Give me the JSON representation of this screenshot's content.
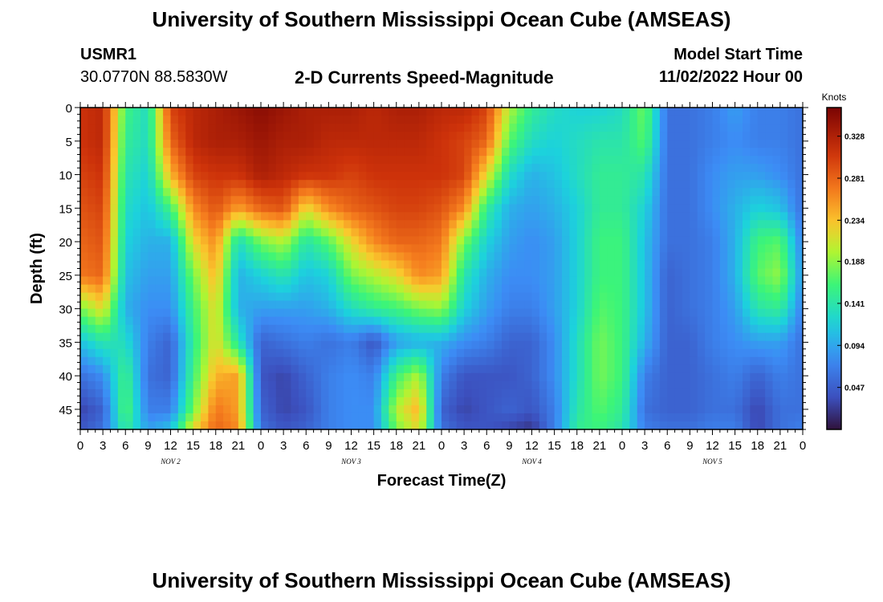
{
  "header": {
    "title": "University of Southern Mississippi Ocean Cube (AMSEAS)",
    "station": "USMR1",
    "coords": "30.0770N  88.5830W",
    "subtitle": "2-D Currents Speed-Magnitude",
    "model_start_label": "Model Start Time",
    "model_start_value": "11/02/2022 Hour 00"
  },
  "footer": {
    "title": "University of Southern Mississippi Ocean Cube (AMSEAS)"
  },
  "chart_data": {
    "type": "heatmap",
    "title": "2-D Currents Speed-Magnitude",
    "xlabel": "Forecast Time(Z)",
    "ylabel": "Depth (ft)",
    "x_unit": "hours since 11/02/2022 00Z",
    "xlim": [
      0,
      96
    ],
    "ylim": [
      0,
      48
    ],
    "x_ticks": [
      0,
      3,
      6,
      9,
      12,
      15,
      18,
      21,
      24,
      27,
      30,
      33,
      36,
      39,
      42,
      45,
      48,
      51,
      54,
      57,
      60,
      63,
      66,
      69,
      72,
      75,
      78,
      81,
      84,
      87,
      90,
      93,
      96
    ],
    "x_tick_labels": [
      "0",
      "3",
      "6",
      "9",
      "12",
      "15",
      "18",
      "21",
      "0",
      "3",
      "6",
      "9",
      "12",
      "15",
      "18",
      "21",
      "0",
      "3",
      "6",
      "9",
      "12",
      "15",
      "18",
      "21",
      "0",
      "3",
      "6",
      "9",
      "12",
      "15",
      "18",
      "21",
      "0"
    ],
    "day_labels": [
      {
        "label": "NOV 2",
        "hour": 12
      },
      {
        "label": "NOV 3",
        "hour": 36
      },
      {
        "label": "NOV 4",
        "hour": 60
      },
      {
        "label": "NOV 5",
        "hour": 84
      }
    ],
    "y_ticks": [
      0,
      5,
      10,
      15,
      20,
      25,
      30,
      35,
      40,
      45
    ],
    "y_tick_labels": [
      "0",
      "5",
      "10",
      "15",
      "20",
      "25",
      "30",
      "35",
      "40",
      "45"
    ],
    "colorbar": {
      "label": "Knots",
      "min": 0.0,
      "max": 0.36,
      "tick_values": [
        0.047,
        0.094,
        0.141,
        0.188,
        0.234,
        0.281,
        0.328
      ],
      "tick_labels": [
        "0.047",
        "0.094",
        "0.141",
        "0.188",
        "0.234",
        "0.281",
        "0.328"
      ]
    },
    "grid": {
      "hours": [
        0,
        3,
        6,
        9,
        12,
        15,
        18,
        21,
        24,
        27,
        30,
        33,
        36,
        39,
        42,
        45,
        48,
        51,
        54,
        57,
        60,
        63,
        66,
        69,
        72,
        75,
        78,
        81,
        84,
        87,
        90,
        93,
        96
      ],
      "depths_ft": [
        0,
        5,
        10,
        15,
        20,
        25,
        30,
        35,
        40,
        45,
        48
      ],
      "speed_knots": [
        [
          0.31,
          0.32,
          0.16,
          0.13,
          0.3,
          0.32,
          0.33,
          0.34,
          0.35,
          0.34,
          0.33,
          0.33,
          0.33,
          0.32,
          0.33,
          0.33,
          0.32,
          0.32,
          0.3,
          0.2,
          0.15,
          0.13,
          0.12,
          0.12,
          0.13,
          0.18,
          0.06,
          0.06,
          0.07,
          0.09,
          0.07,
          0.07,
          0.06
        ],
        [
          0.31,
          0.32,
          0.15,
          0.13,
          0.28,
          0.32,
          0.33,
          0.33,
          0.34,
          0.33,
          0.33,
          0.32,
          0.32,
          0.32,
          0.32,
          0.32,
          0.31,
          0.3,
          0.28,
          0.17,
          0.13,
          0.12,
          0.13,
          0.14,
          0.14,
          0.17,
          0.06,
          0.06,
          0.07,
          0.08,
          0.07,
          0.07,
          0.06
        ],
        [
          0.3,
          0.31,
          0.14,
          0.12,
          0.24,
          0.3,
          0.31,
          0.31,
          0.33,
          0.32,
          0.31,
          0.31,
          0.3,
          0.31,
          0.31,
          0.31,
          0.31,
          0.3,
          0.22,
          0.13,
          0.1,
          0.11,
          0.13,
          0.15,
          0.15,
          0.14,
          0.06,
          0.06,
          0.08,
          0.09,
          0.09,
          0.08,
          0.06
        ],
        [
          0.29,
          0.3,
          0.13,
          0.11,
          0.16,
          0.26,
          0.29,
          0.25,
          0.28,
          0.29,
          0.22,
          0.26,
          0.28,
          0.29,
          0.3,
          0.3,
          0.29,
          0.26,
          0.15,
          0.1,
          0.09,
          0.1,
          0.12,
          0.15,
          0.15,
          0.12,
          0.06,
          0.06,
          0.08,
          0.1,
          0.12,
          0.11,
          0.06
        ],
        [
          0.28,
          0.29,
          0.12,
          0.1,
          0.1,
          0.22,
          0.26,
          0.13,
          0.18,
          0.2,
          0.14,
          0.17,
          0.22,
          0.26,
          0.28,
          0.28,
          0.27,
          0.18,
          0.12,
          0.09,
          0.08,
          0.09,
          0.12,
          0.16,
          0.16,
          0.11,
          0.06,
          0.06,
          0.07,
          0.1,
          0.16,
          0.17,
          0.07
        ],
        [
          0.27,
          0.28,
          0.11,
          0.09,
          0.09,
          0.18,
          0.24,
          0.1,
          0.12,
          0.14,
          0.11,
          0.12,
          0.18,
          0.2,
          0.22,
          0.26,
          0.25,
          0.14,
          0.1,
          0.08,
          0.08,
          0.09,
          0.12,
          0.16,
          0.16,
          0.11,
          0.05,
          0.06,
          0.07,
          0.1,
          0.17,
          0.19,
          0.08
        ],
        [
          0.18,
          0.22,
          0.1,
          0.08,
          0.08,
          0.16,
          0.22,
          0.1,
          0.09,
          0.09,
          0.09,
          0.1,
          0.13,
          0.15,
          0.16,
          0.18,
          0.19,
          0.12,
          0.09,
          0.07,
          0.07,
          0.09,
          0.12,
          0.17,
          0.16,
          0.11,
          0.05,
          0.06,
          0.07,
          0.09,
          0.14,
          0.15,
          0.07
        ],
        [
          0.11,
          0.14,
          0.13,
          0.07,
          0.05,
          0.15,
          0.22,
          0.14,
          0.05,
          0.06,
          0.07,
          0.06,
          0.07,
          0.04,
          0.09,
          0.1,
          0.1,
          0.08,
          0.07,
          0.05,
          0.05,
          0.08,
          0.13,
          0.18,
          0.16,
          0.1,
          0.05,
          0.05,
          0.07,
          0.08,
          0.09,
          0.09,
          0.06
        ],
        [
          0.06,
          0.08,
          0.16,
          0.06,
          0.05,
          0.16,
          0.24,
          0.25,
          0.04,
          0.03,
          0.05,
          0.07,
          0.08,
          0.07,
          0.16,
          0.2,
          0.07,
          0.04,
          0.04,
          0.04,
          0.05,
          0.08,
          0.13,
          0.18,
          0.16,
          0.07,
          0.05,
          0.05,
          0.06,
          0.07,
          0.05,
          0.07,
          0.06
        ],
        [
          0.03,
          0.05,
          0.17,
          0.07,
          0.07,
          0.18,
          0.27,
          0.25,
          0.05,
          0.03,
          0.04,
          0.07,
          0.08,
          0.08,
          0.2,
          0.24,
          0.05,
          0.03,
          0.04,
          0.05,
          0.04,
          0.07,
          0.14,
          0.17,
          0.15,
          0.06,
          0.05,
          0.05,
          0.06,
          0.06,
          0.03,
          0.06,
          0.06
        ],
        [
          0.04,
          0.06,
          0.15,
          0.09,
          0.11,
          0.22,
          0.28,
          0.26,
          0.06,
          0.04,
          0.05,
          0.07,
          0.08,
          0.08,
          0.18,
          0.22,
          0.06,
          0.04,
          0.04,
          0.03,
          0.02,
          0.07,
          0.15,
          0.16,
          0.14,
          0.07,
          0.06,
          0.06,
          0.07,
          0.07,
          0.03,
          0.06,
          0.07
        ]
      ]
    }
  }
}
